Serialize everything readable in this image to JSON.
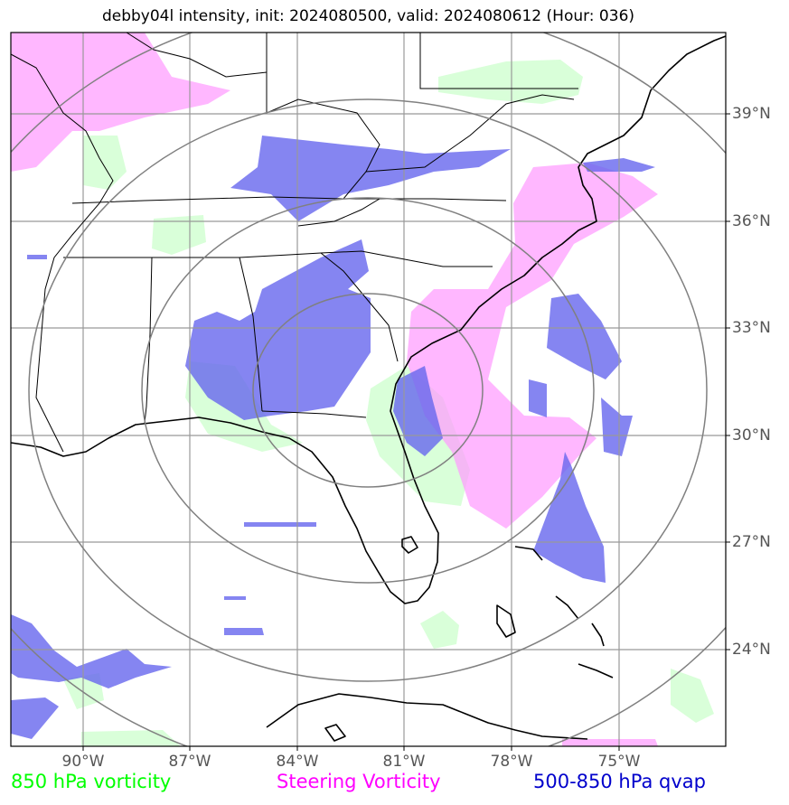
{
  "title": "debby04l intensity, init: 2024080500, valid: 2024080612 (Hour: 036)",
  "lat_labels": [
    "39°N",
    "36°N",
    "33°N",
    "30°N",
    "27°N",
    "24°N"
  ],
  "lon_labels": [
    "90°W",
    "87°W",
    "84°W",
    "81°W",
    "78°W",
    "75°W"
  ],
  "legend": {
    "vorticity_850": {
      "label": "850 hPa vorticity",
      "color": "#00ff00"
    },
    "steering": {
      "label": "Steering Vorticity",
      "color": "#ff00ff"
    },
    "qvap": {
      "label": "500-850 hPa qvap",
      "color": "#0000cc"
    }
  },
  "colors": {
    "green_fill": "#ccffcc",
    "magenta_fill": "#ff99ff",
    "blue_fill": "#6666ee",
    "grid": "#999999",
    "range_rings": "#808080"
  }
}
